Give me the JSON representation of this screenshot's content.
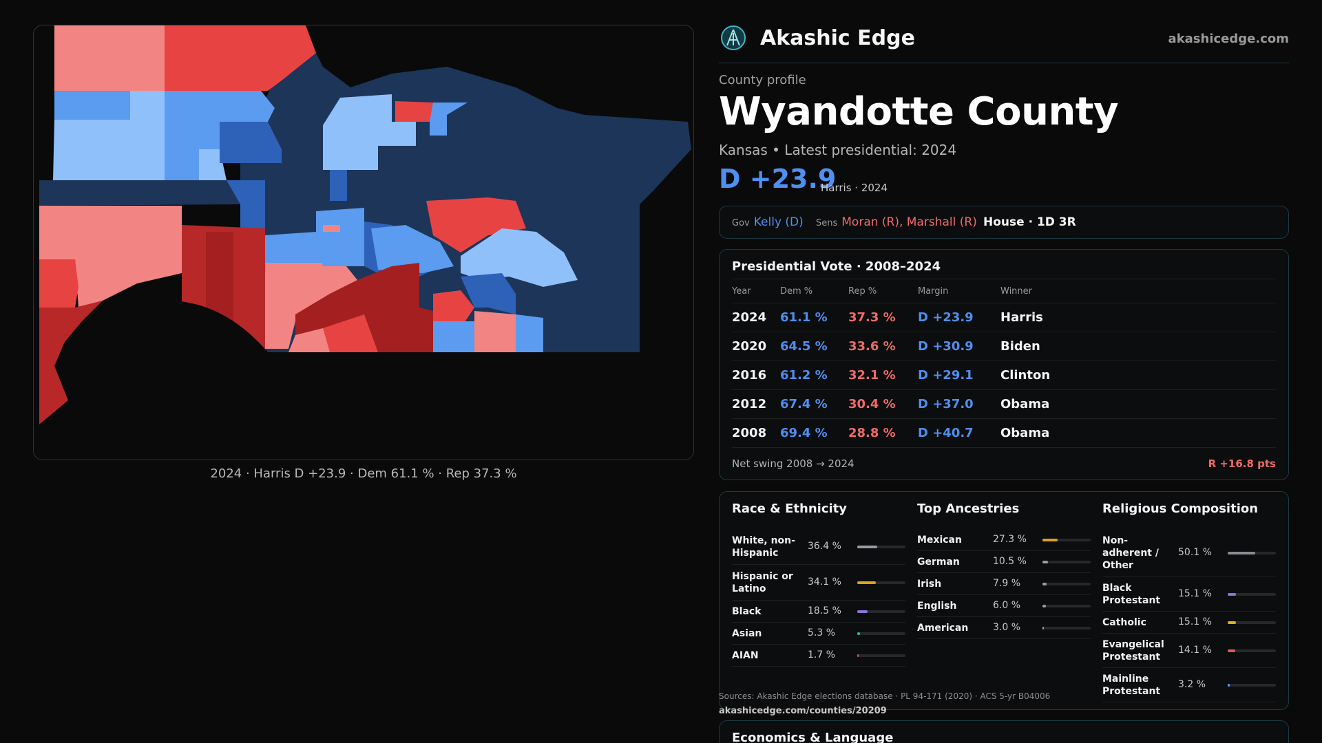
{
  "brand": {
    "name": "Akashic Edge",
    "url": "akashicedge.com"
  },
  "profile": {
    "kicker": "County profile",
    "county": "Wyandotte County",
    "subline": "Kansas • Latest presidential: 2024",
    "margin": "D +23.9",
    "margin_note": "Harris · 2024"
  },
  "officials": {
    "gov_label": "Gov",
    "gov": "Kelly (D)",
    "sens_label": "Sens",
    "sens": "Moran (R), Marshall (R)",
    "house": "House · 1D 3R"
  },
  "map": {
    "caption": "2024 · Harris D +23.9 · Dem 61.1 % · Rep 37.3 %",
    "colors": {
      "safe_d": "#1c3559",
      "likely_d": "#2e62b8",
      "lean_d": "#5b9bf0",
      "tilt_d": "#8fc0fa",
      "tilt_r": "#f28583",
      "lean_r": "#e84343",
      "likely_r": "#b82828",
      "safe_r": "#a31f20"
    }
  },
  "presidential": {
    "title": "Presidential Vote · 2008–2024",
    "headers": {
      "year": "Year",
      "dem": "Dem %",
      "rep": "Rep %",
      "margin": "Margin",
      "winner": "Winner"
    },
    "rows": [
      {
        "year": "2024",
        "dem": "61.1 %",
        "rep": "37.3 %",
        "margin": "D +23.9",
        "winner": "Harris"
      },
      {
        "year": "2020",
        "dem": "64.5 %",
        "rep": "33.6 %",
        "margin": "D +30.9",
        "winner": "Biden"
      },
      {
        "year": "2016",
        "dem": "61.2 %",
        "rep": "32.1 %",
        "margin": "D +29.1",
        "winner": "Clinton"
      },
      {
        "year": "2012",
        "dem": "67.4 %",
        "rep": "30.4 %",
        "margin": "D +37.0",
        "winner": "Obama"
      },
      {
        "year": "2008",
        "dem": "69.4 %",
        "rep": "28.8 %",
        "margin": "D +40.7",
        "winner": "Obama"
      }
    ],
    "swing_label": "Net swing 2008 → 2024",
    "swing_value": "R +16.8 pts"
  },
  "race": {
    "title": "Race & Ethnicity",
    "rows": [
      {
        "label": "White, non-Hispanic",
        "value": "36.4 %",
        "pct": 36.4,
        "color": "#9a9ca3"
      },
      {
        "label": "Hispanic or Latino",
        "value": "34.1 %",
        "pct": 34.1,
        "color": "#e0a11f"
      },
      {
        "label": "Black",
        "value": "18.5 %",
        "pct": 18.5,
        "color": "#8e74d8"
      },
      {
        "label": "Asian",
        "value": "5.3 %",
        "pct": 5.3,
        "color": "#2fbf8a"
      },
      {
        "label": "AIAN",
        "value": "1.7 %",
        "pct": 1.7,
        "color": "#e05a3a"
      }
    ]
  },
  "ancestry": {
    "title": "Top Ancestries",
    "rows": [
      {
        "label": "Mexican",
        "value": "27.3 %",
        "pct": 27.3,
        "color": "#e0a11f"
      },
      {
        "label": "German",
        "value": "10.5 %",
        "pct": 10.5,
        "color": "#9a9ca3"
      },
      {
        "label": "Irish",
        "value": "7.9 %",
        "pct": 7.9,
        "color": "#9a9ca3"
      },
      {
        "label": "English",
        "value": "6.0 %",
        "pct": 6.0,
        "color": "#9a9ca3"
      },
      {
        "label": "American",
        "value": "3.0 %",
        "pct": 3.0,
        "color": "#9a9ca3"
      }
    ]
  },
  "religion": {
    "title": "Religious Composition",
    "rows": [
      {
        "label": "Non-adherent / Other",
        "value": "50.1 %",
        "pct": 50.1,
        "color": "#8a8c92"
      },
      {
        "label": "Black Protestant",
        "value": "15.1 %",
        "pct": 15.1,
        "color": "#8e74d8"
      },
      {
        "label": "Catholic",
        "value": "15.1 %",
        "pct": 15.1,
        "color": "#e0b11f"
      },
      {
        "label": "Evangelical Protestant",
        "value": "14.1 %",
        "pct": 14.1,
        "color": "#e05a5a"
      },
      {
        "label": "Mainline Protestant",
        "value": "3.2 %",
        "pct": 3.2,
        "color": "#5b9bf0"
      }
    ]
  },
  "sources": "Sources: Akashic Edge elections database · PL 94-171 (2020) · ACS 5-yr B04006",
  "source_url": "akashicedge.com/counties/20209",
  "economics_title": "Economics & Language"
}
